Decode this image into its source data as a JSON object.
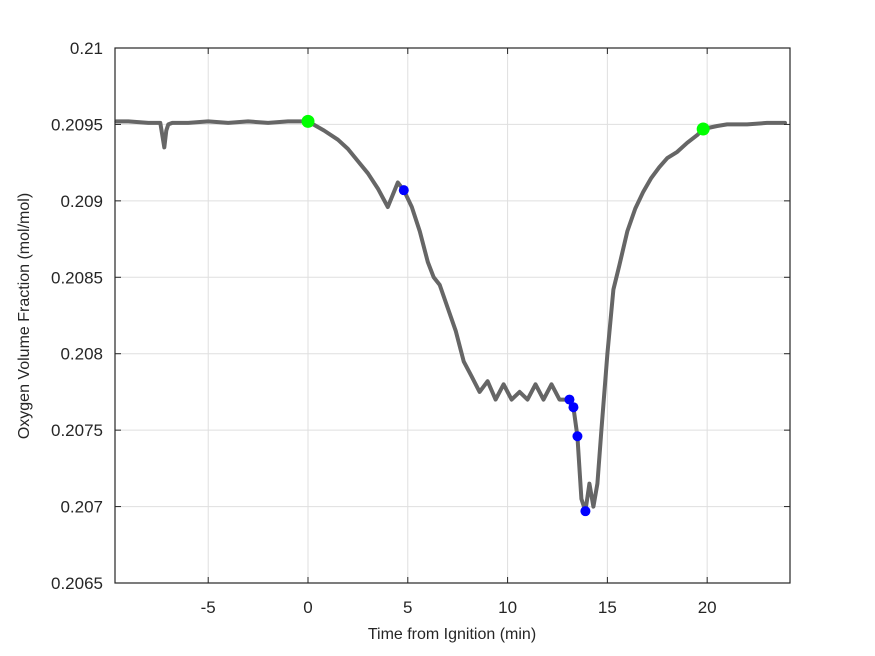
{
  "chart_data": {
    "type": "line",
    "title": "",
    "xlabel": "Time from Ignition (min)",
    "ylabel": "Oxygen Volume Fraction (mol/mol)",
    "xlim": [
      -9.67,
      24.15
    ],
    "ylim": [
      0.2065,
      0.21
    ],
    "x_ticks": [
      -5,
      0,
      5,
      10,
      15,
      20
    ],
    "x_tick_labels": [
      "-5",
      "0",
      "5",
      "10",
      "15",
      "20"
    ],
    "y_ticks": [
      0.2065,
      0.207,
      0.2075,
      0.208,
      0.2085,
      0.209,
      0.2095,
      0.21
    ],
    "y_tick_labels": [
      "0.2065",
      "0.207",
      "0.2075",
      "0.208",
      "0.2085",
      "0.209",
      "0.2095",
      "0.21"
    ],
    "grid": true,
    "legend": null,
    "colors": {
      "line": "#666666",
      "green_marker": "#00ff00",
      "blue_marker": "#0000ff",
      "grid": "#dfdfdf",
      "axis": "#262626"
    },
    "series": [
      {
        "name": "Oxygen volume fraction",
        "style": "gray line with dot markers",
        "x": [
          -9.6,
          -9.0,
          -8.0,
          -7.4,
          -7.2,
          -7.1,
          -7.0,
          -6.8,
          -6.0,
          -5.0,
          -4.0,
          -3.0,
          -2.0,
          -1.0,
          0.0,
          0.8,
          1.5,
          2.0,
          2.5,
          3.0,
          3.5,
          4.0,
          4.5,
          4.8,
          5.2,
          5.6,
          6.0,
          6.3,
          6.6,
          7.0,
          7.4,
          7.8,
          8.2,
          8.6,
          9.0,
          9.4,
          9.8,
          10.2,
          10.6,
          11.0,
          11.4,
          11.8,
          12.2,
          12.6,
          13.1,
          13.3,
          13.5,
          13.7,
          13.9,
          14.1,
          14.3,
          14.5,
          14.7,
          15.0,
          15.3,
          15.6,
          16.0,
          16.4,
          16.8,
          17.2,
          17.6,
          18.0,
          18.5,
          19.0,
          19.5,
          19.8,
          20.5,
          21.0,
          22.0,
          23.0,
          23.9
        ],
        "y": [
          0.20952,
          0.20952,
          0.20951,
          0.20951,
          0.20935,
          0.20946,
          0.2095,
          0.20951,
          0.20951,
          0.20952,
          0.20951,
          0.20952,
          0.20951,
          0.20952,
          0.20952,
          0.20946,
          0.2094,
          0.20934,
          0.20926,
          0.20918,
          0.20908,
          0.20896,
          0.20912,
          0.20907,
          0.20896,
          0.2088,
          0.2086,
          0.2085,
          0.20845,
          0.2083,
          0.20815,
          0.20795,
          0.20785,
          0.20775,
          0.20782,
          0.2077,
          0.2078,
          0.2077,
          0.20775,
          0.2077,
          0.2078,
          0.2077,
          0.2078,
          0.2077,
          0.2077,
          0.20765,
          0.20746,
          0.20705,
          0.20697,
          0.20715,
          0.207,
          0.20715,
          0.2075,
          0.208,
          0.20842,
          0.20858,
          0.2088,
          0.20895,
          0.20906,
          0.20915,
          0.20922,
          0.20928,
          0.20932,
          0.20938,
          0.20943,
          0.20947,
          0.20949,
          0.2095,
          0.2095,
          0.20951,
          0.20951
        ]
      },
      {
        "name": "Start/End markers",
        "style": "green circle",
        "x": [
          0.0,
          19.8
        ],
        "y": [
          0.20952,
          0.20947
        ]
      },
      {
        "name": "Event markers",
        "style": "blue circle",
        "x": [
          4.8,
          13.1,
          13.3,
          13.5,
          13.9
        ],
        "y": [
          0.20907,
          0.2077,
          0.20765,
          0.20746,
          0.20697
        ]
      }
    ]
  }
}
